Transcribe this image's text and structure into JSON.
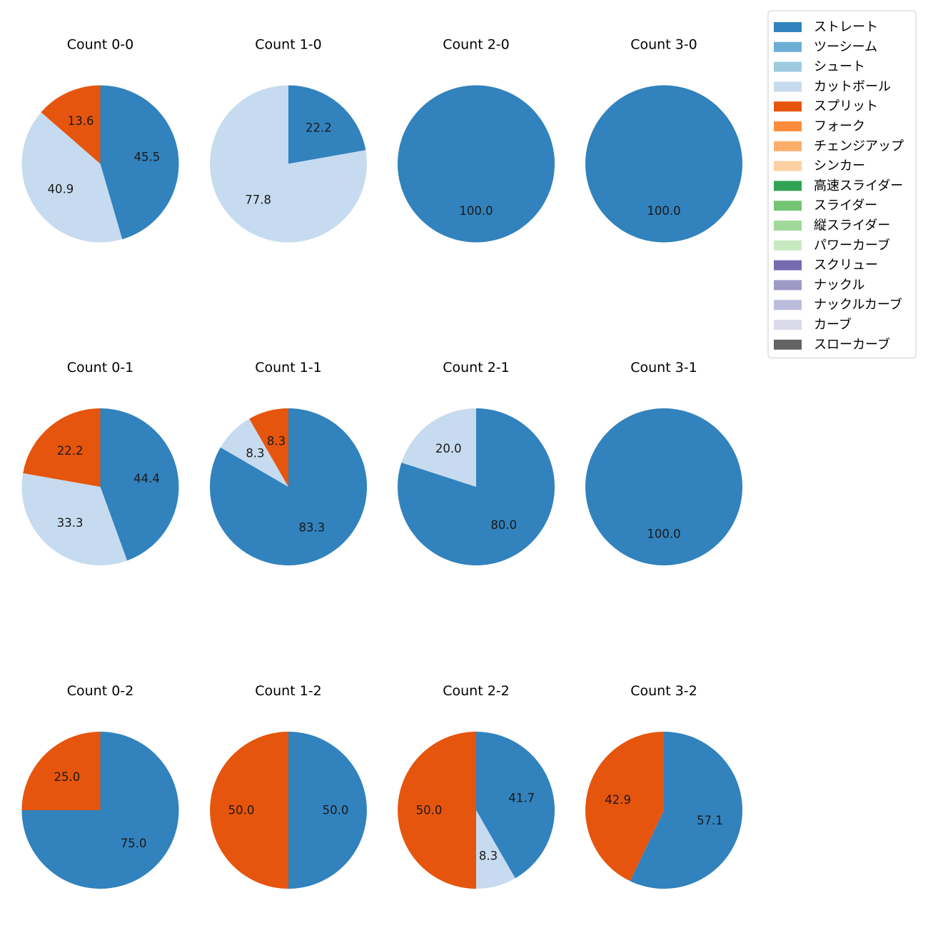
{
  "chart_data": {
    "type": "pie",
    "layout": "grid of small-multiple pies, 3 rows by 4 columns",
    "legend": {
      "placement": "top-right",
      "entries": [
        {
          "label": "ストレート",
          "color": "#3182bd"
        },
        {
          "label": "ツーシーム",
          "color": "#6baed6"
        },
        {
          "label": "シュート",
          "color": "#9ecae1"
        },
        {
          "label": "カットボール",
          "color": "#c6dbef"
        },
        {
          "label": "スプリット",
          "color": "#e6550d"
        },
        {
          "label": "フォーク",
          "color": "#fd8d3c"
        },
        {
          "label": "チェンジアップ",
          "color": "#fdae6b"
        },
        {
          "label": "シンカー",
          "color": "#fdd0a2"
        },
        {
          "label": "高速スライダー",
          "color": "#31a354"
        },
        {
          "label": "スライダー",
          "color": "#74c476"
        },
        {
          "label": "縦スライダー",
          "color": "#a1d99b"
        },
        {
          "label": "パワーカーブ",
          "color": "#c7e9c0"
        },
        {
          "label": "スクリュー",
          "color": "#756bb1"
        },
        {
          "label": "ナックル",
          "color": "#9e9ac8"
        },
        {
          "label": "ナックルカーブ",
          "color": "#bcbddc"
        },
        {
          "label": "カーブ",
          "color": "#dadaeb"
        },
        {
          "label": "スローカーブ",
          "color": "#636363"
        }
      ]
    },
    "pies": [
      {
        "title": "Count 0-0",
        "slices": [
          {
            "pitch": "ストレート",
            "value": 45.5,
            "label": "45.5"
          },
          {
            "pitch": "カットボール",
            "value": 40.9,
            "label": "40.9"
          },
          {
            "pitch": "スプリット",
            "value": 13.6,
            "label": "13.6"
          }
        ]
      },
      {
        "title": "Count 1-0",
        "slices": [
          {
            "pitch": "ストレート",
            "value": 22.2,
            "label": "22.2"
          },
          {
            "pitch": "カットボール",
            "value": 77.8,
            "label": "77.8"
          }
        ]
      },
      {
        "title": "Count 2-0",
        "slices": [
          {
            "pitch": "ストレート",
            "value": 100.0,
            "label": "100.0"
          }
        ]
      },
      {
        "title": "Count 3-0",
        "slices": [
          {
            "pitch": "ストレート",
            "value": 100.0,
            "label": "100.0"
          }
        ]
      },
      {
        "title": "Count 0-1",
        "slices": [
          {
            "pitch": "ストレート",
            "value": 44.4,
            "label": "44.4"
          },
          {
            "pitch": "カットボール",
            "value": 33.3,
            "label": "33.3"
          },
          {
            "pitch": "スプリット",
            "value": 22.2,
            "label": "22.2"
          }
        ]
      },
      {
        "title": "Count 1-1",
        "slices": [
          {
            "pitch": "ストレート",
            "value": 83.3,
            "label": "83.3"
          },
          {
            "pitch": "カットボール",
            "value": 8.3,
            "label": "8.3"
          },
          {
            "pitch": "スプリット",
            "value": 8.3,
            "label": "8.3"
          }
        ]
      },
      {
        "title": "Count 2-1",
        "slices": [
          {
            "pitch": "ストレート",
            "value": 80.0,
            "label": "80.0"
          },
          {
            "pitch": "カットボール",
            "value": 20.0,
            "label": "20.0"
          }
        ]
      },
      {
        "title": "Count 3-1",
        "slices": [
          {
            "pitch": "ストレート",
            "value": 100.0,
            "label": "100.0"
          }
        ]
      },
      {
        "title": "Count 0-2",
        "slices": [
          {
            "pitch": "ストレート",
            "value": 75.0,
            "label": "75.0"
          },
          {
            "pitch": "スプリット",
            "value": 25.0,
            "label": "25.0"
          }
        ]
      },
      {
        "title": "Count 1-2",
        "slices": [
          {
            "pitch": "ストレート",
            "value": 50.0,
            "label": "50.0"
          },
          {
            "pitch": "スプリット",
            "value": 50.0,
            "label": "50.0"
          }
        ]
      },
      {
        "title": "Count 2-2",
        "slices": [
          {
            "pitch": "ストレート",
            "value": 41.7,
            "label": "41.7"
          },
          {
            "pitch": "カットボール",
            "value": 8.3,
            "label": "8.3"
          },
          {
            "pitch": "スプリット",
            "value": 50.0,
            "label": "50.0"
          }
        ]
      },
      {
        "title": "Count 3-2",
        "slices": [
          {
            "pitch": "ストレート",
            "value": 57.1,
            "label": "57.1"
          },
          {
            "pitch": "スプリット",
            "value": 42.9,
            "label": "42.9"
          }
        ]
      }
    ]
  }
}
